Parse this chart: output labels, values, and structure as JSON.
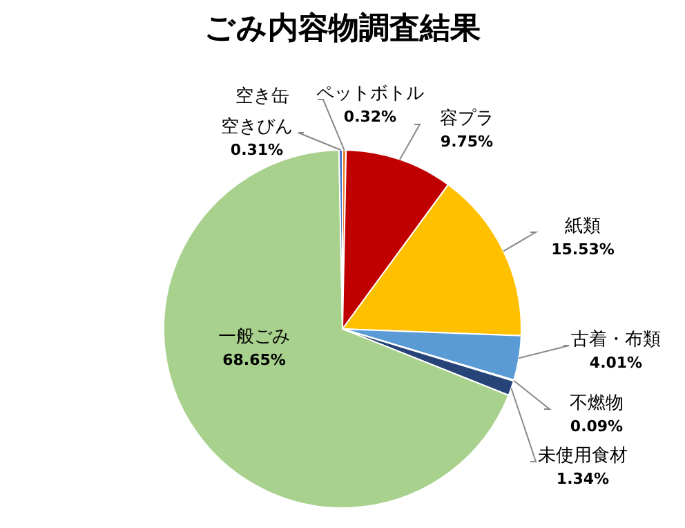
{
  "chart_data": {
    "type": "pie",
    "title": "ごみ内容物調査結果",
    "categories": [
      "空き缶",
      "ペットボトル",
      "容プラ",
      "紙類",
      "古着・布類",
      "不燃物",
      "未使用食材",
      "一般ごみ",
      "空きびん"
    ],
    "values": [
      0,
      0.32,
      9.75,
      15.53,
      4.01,
      0.09,
      1.34,
      68.65,
      0.31
    ],
    "value_labels": [
      null,
      "0.32%",
      "9.75%",
      "15.53%",
      "4.01%",
      "0.09%",
      "1.34%",
      "68.65%",
      "0.31%"
    ],
    "colors": [
      "#a5a5a5",
      "#ed7d31",
      "#c00000",
      "#ffc000",
      "#5b9bd5",
      "#70ad47",
      "#264478",
      "#a9d18e",
      "#4472c4"
    ],
    "legend": false
  }
}
